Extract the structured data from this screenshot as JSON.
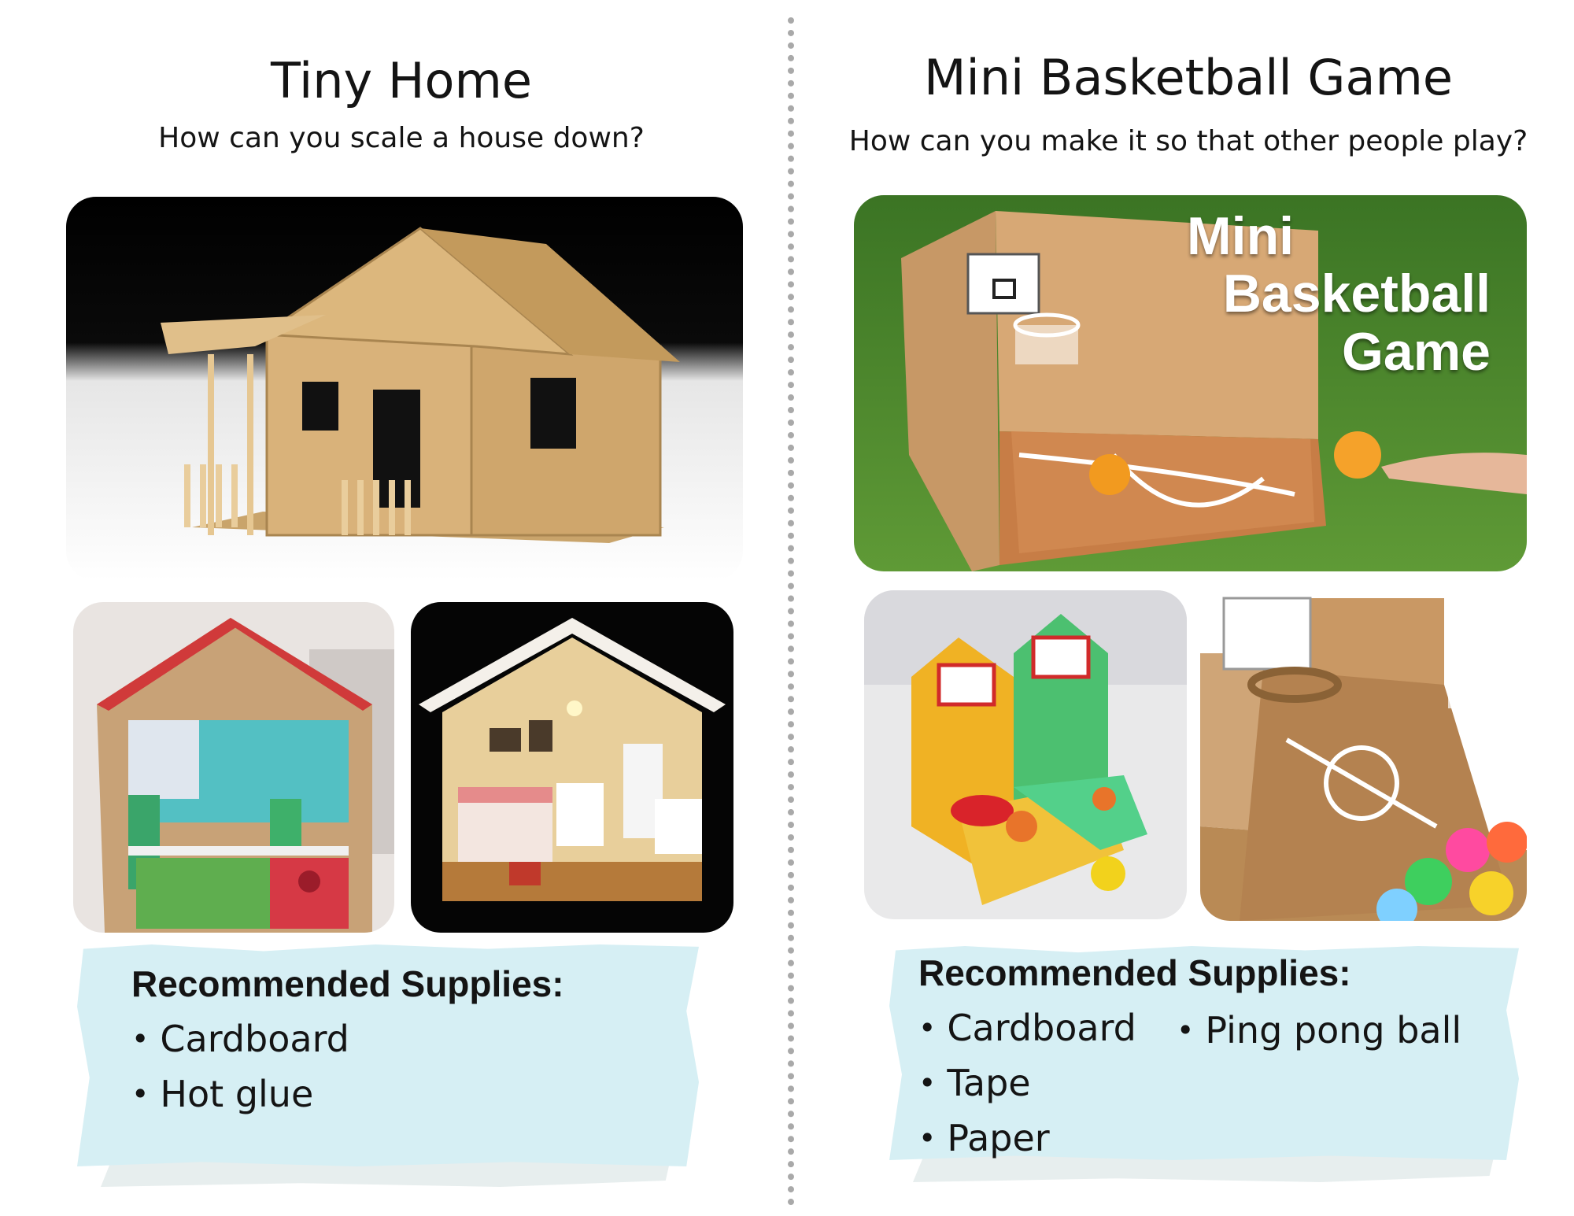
{
  "left": {
    "title": "Tiny Home",
    "question": "How can you scale a house down?",
    "supplies_heading": "Recommended Supplies:",
    "supplies": [
      "Cardboard",
      "Hot glue"
    ]
  },
  "right": {
    "title": "Mini Basketball Game",
    "question": "How can you make it so that other people play?",
    "photo_overlay": [
      "Mini",
      "Basketball",
      "Game"
    ],
    "supplies_heading": "Recommended Supplies:",
    "supplies": [
      "Cardboard",
      "Tape",
      "Paper",
      "Ping pong ball"
    ]
  },
  "colors": {
    "supplies_background": "#d6eff4",
    "divider": "#a9a9a9",
    "cardboard": "#d9b27a",
    "grass": "#4f8a2e"
  },
  "bullet_glyph": "•"
}
